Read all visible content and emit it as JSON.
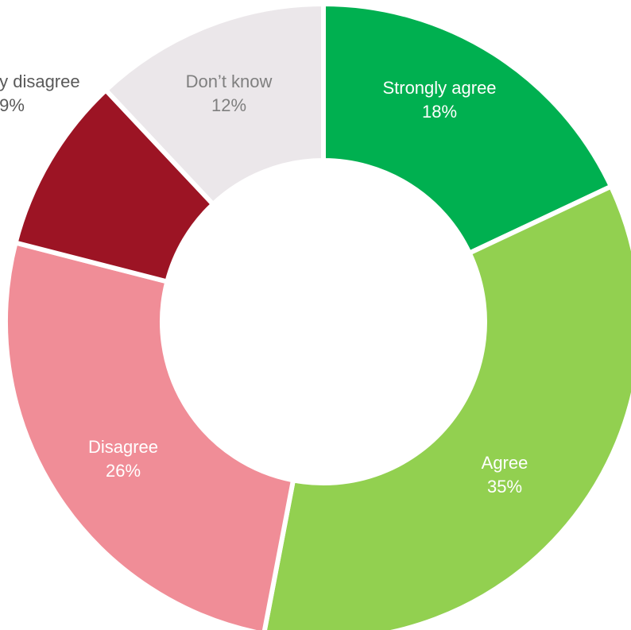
{
  "chart_data": {
    "type": "donut",
    "categories": [
      "Strongly agree",
      "Agree",
      "Disagree",
      "Strongly disagree",
      "Don’t know"
    ],
    "values": [
      18,
      35,
      26,
      9,
      12
    ],
    "value_labels": [
      "18%",
      "35%",
      "26%",
      "9%",
      "12%"
    ],
    "colors": [
      "#00b050",
      "#92d050",
      "#f08d97",
      "#9c1424",
      "#ebe7ea"
    ]
  }
}
